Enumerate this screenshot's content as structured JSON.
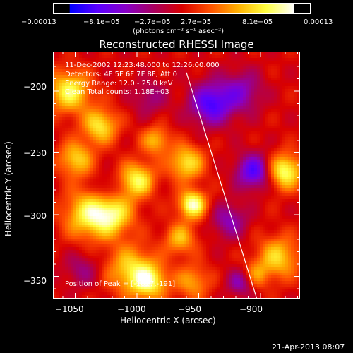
{
  "colorbar": {
    "ticks": [
      "−0.00013",
      "−8.1e−05",
      "−2.7e−05",
      "2.7e−05",
      "8.1e−05",
      "0.00013"
    ],
    "unit": "(photons cm⁻² s⁻¹ asec⁻²)",
    "colors": [
      "#0000ff",
      "#5a00ff",
      "#8800c8",
      "#a80060",
      "#d80000",
      "#ff5000",
      "#ffb000",
      "#ffff40",
      "#ffffff"
    ]
  },
  "plot": {
    "title": "Reconstructed RHESSI Image",
    "info_lines": [
      "11-Dec-2002 12:23:48.000 to 12:26:00.000",
      "Detectors: 4F 5F 6F 7F 8F, Att 0",
      "Energy Range: 12.0 - 25.0 keV",
      "Clean    Total counts: 1.18E+03"
    ],
    "peak_text": "Position of Peak = [-1027,-191]",
    "xlabel": "Heliocentric X (arcsec)",
    "ylabel": "Heliocentric Y (arcsec)",
    "xticks": [
      "−1050",
      "−1000",
      "−950",
      "−900"
    ],
    "yticks": [
      "−200",
      "−250",
      "−300",
      "−350"
    ],
    "xlim": [
      -1068,
      -868
    ],
    "ylim": [
      -368,
      -168
    ]
  },
  "footer": {
    "date": "21-Apr-2013 08:07"
  },
  "chart_data": {
    "type": "heatmap",
    "title": "Reconstructed RHESSI Image",
    "xlabel": "Heliocentric X (arcsec)",
    "ylabel": "Heliocentric Y (arcsec)",
    "xlim": [
      -1068,
      -868
    ],
    "ylim": [
      -368,
      -168
    ],
    "colorbar_range": [
      -0.00013,
      0.00013
    ],
    "peak_position": [
      -1027,
      -191
    ],
    "blobs": [
      {
        "x": -1055,
        "y": -200,
        "sigma": 12,
        "value": 0.0001
      },
      {
        "x": -1030,
        "y": -228,
        "sigma": 10,
        "value": 9e-05
      },
      {
        "x": -1050,
        "y": -255,
        "sigma": 10,
        "value": 8e-05
      },
      {
        "x": -1040,
        "y": -300,
        "sigma": 14,
        "value": 9e-05
      },
      {
        "x": -1020,
        "y": -300,
        "sigma": 12,
        "value": 9e-05
      },
      {
        "x": -1000,
        "y": -272,
        "sigma": 10,
        "value": 0.0001
      },
      {
        "x": -985,
        "y": -240,
        "sigma": 8,
        "value": 7e-05
      },
      {
        "x": -960,
        "y": -258,
        "sigma": 10,
        "value": 9e-05
      },
      {
        "x": -955,
        "y": -292,
        "sigma": 8,
        "value": 0.00012
      },
      {
        "x": -965,
        "y": -320,
        "sigma": 9,
        "value": 7e-05
      },
      {
        "x": -1005,
        "y": -345,
        "sigma": 14,
        "value": 8e-05
      },
      {
        "x": -990,
        "y": -355,
        "sigma": 10,
        "value": 9e-05
      },
      {
        "x": -955,
        "y": -355,
        "sigma": 10,
        "value": 6e-05
      },
      {
        "x": -880,
        "y": -265,
        "sigma": 10,
        "value": 0.00011
      },
      {
        "x": -885,
        "y": -335,
        "sigma": 12,
        "value": 8e-05
      },
      {
        "x": -905,
        "y": -350,
        "sigma": 8,
        "value": 6e-05
      },
      {
        "x": -940,
        "y": -210,
        "sigma": 12,
        "value": -0.0001
      },
      {
        "x": -905,
        "y": -265,
        "sigma": 10,
        "value": -0.0001
      },
      {
        "x": -915,
        "y": -200,
        "sigma": 12,
        "value": -6e-05
      },
      {
        "x": -925,
        "y": -305,
        "sigma": 10,
        "value": -6e-05
      },
      {
        "x": -1025,
        "y": -280,
        "sigma": 8,
        "value": -4e-05
      },
      {
        "x": -1045,
        "y": -345,
        "sigma": 10,
        "value": -4e-05
      },
      {
        "x": -915,
        "y": -355,
        "sigma": 8,
        "value": -7e-05
      },
      {
        "x": -990,
        "y": -205,
        "sigma": 10,
        "value": -4e-05
      }
    ],
    "limb_line": {
      "x": [
        -960,
        -903
      ],
      "y": [
        -185,
        -368
      ]
    }
  }
}
